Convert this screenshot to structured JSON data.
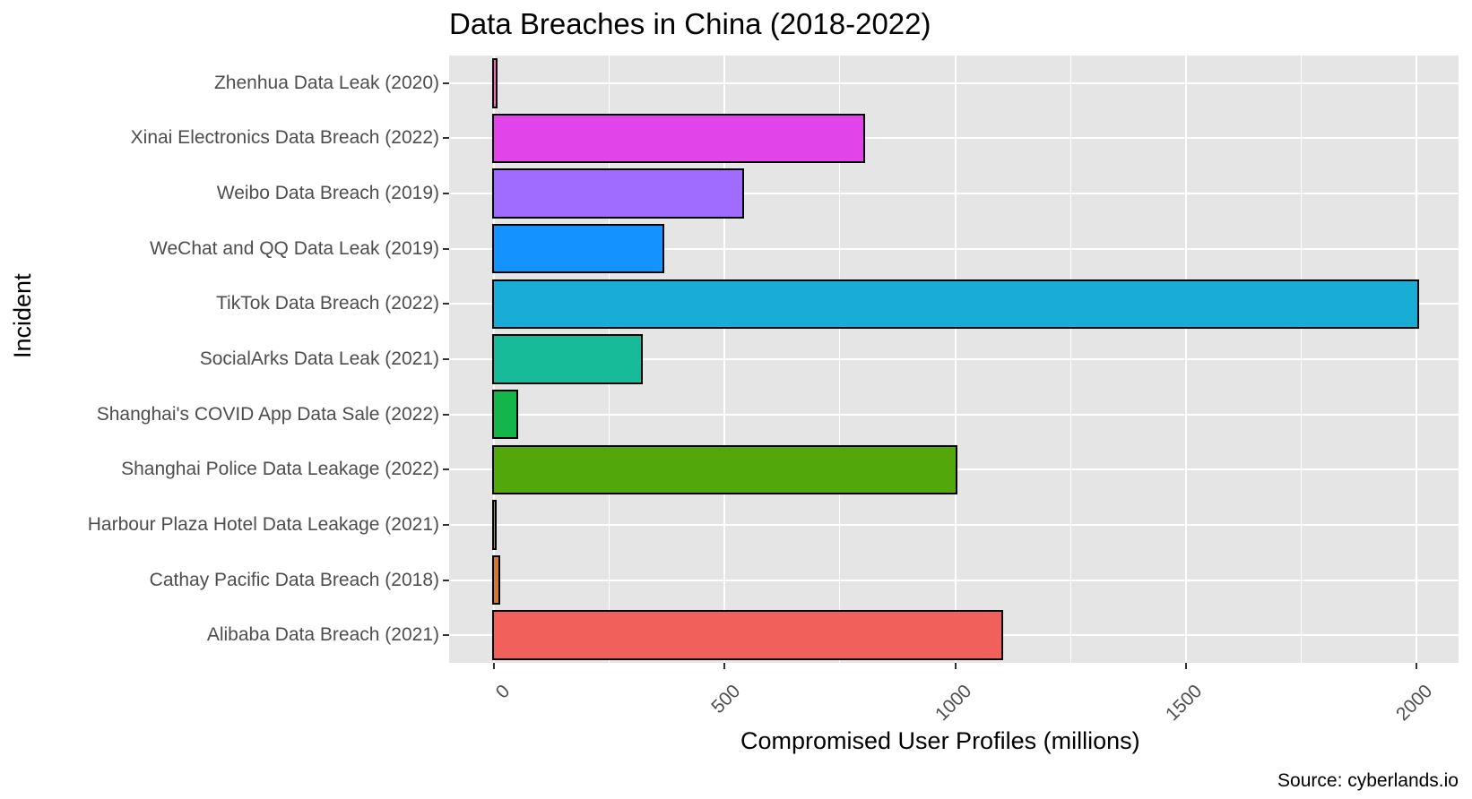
{
  "chart_data": {
    "type": "bar",
    "orientation": "horizontal",
    "title": "Data Breaches in China (2018-2022)",
    "xlabel": "Compromised User Profiles (millions)",
    "ylabel": "Incident",
    "caption": "Source: cyberlands.io",
    "xlim": [
      -100,
      2190
    ],
    "xticks": [
      0,
      500,
      1000,
      1500,
      2000
    ],
    "xtick_labels": [
      "0",
      "500",
      "1000",
      "1500",
      "2000"
    ],
    "grid": true,
    "legend": "none",
    "categories": [
      "Zhenhua Data Leak (2020)",
      "Xinai Electronics Data Breach (2022)",
      "Weibo Data Breach (2019)",
      "WeChat and QQ Data Leak (2019)",
      "TikTok Data Breach (2022)",
      "SocialArks Data Leak (2021)",
      "Shanghai's COVID App Data Sale (2022)",
      "Shanghai Police Data Leakage (2022)",
      "Harbour Plaza Hotel Data Leakage (2021)",
      "Cathay Pacific Data Breach (2018)",
      "Alibaba Data Breach (2021)"
    ],
    "values": [
      2.4,
      800,
      538,
      364,
      2000,
      318,
      48.5,
      1000,
      0.13,
      9.4,
      1100
    ],
    "colors": [
      "#FF61C3",
      "#E144E8",
      "#A06CFF",
      "#1492FF",
      "#19ACD6",
      "#17BA99",
      "#14B54B",
      "#52A80A",
      "#A3A500",
      "#CE7A2F",
      "#F2605C"
    ]
  }
}
